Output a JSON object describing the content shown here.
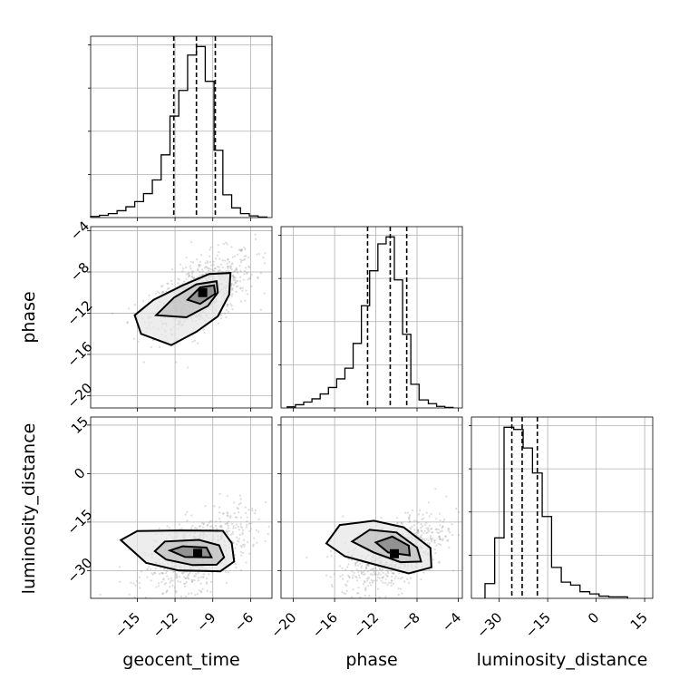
{
  "chart_data": {
    "type": "corner",
    "parameters": [
      "geocent_time",
      "phase",
      "luminosity_distance"
    ],
    "ticks": {
      "geocent_time": [
        -15,
        -12,
        -9,
        -6
      ],
      "phase": [
        -20,
        -16,
        -12,
        -8,
        -4
      ],
      "luminosity_distance": [
        -30,
        -15,
        0,
        15
      ]
    },
    "ranges": {
      "geocent_time": [
        -18.7,
        -4.3
      ],
      "phase": [
        -21.2,
        -3.6
      ],
      "luminosity_distance": [
        -38.6,
        17.5
      ]
    },
    "quantiles": {
      "geocent_time": [
        -12.1,
        -10.3,
        -8.8
      ],
      "phase": [
        -12.8,
        -10.6,
        -9.0
      ],
      "luminosity_distance": [
        -26.1,
        -22.9,
        -18.2
      ]
    },
    "histograms": {
      "geocent_time": {
        "edges": [
          -18.7,
          -18.0,
          -17.3,
          -16.6,
          -15.9,
          -15.2,
          -14.5,
          -13.8,
          -13.1,
          -12.4,
          -11.7,
          -11.0,
          -10.3,
          -9.6,
          -8.9,
          -8.2,
          -7.5,
          -6.8,
          -6.1,
          -5.4,
          -4.7
        ],
        "counts": [
          2,
          4,
          7,
          12,
          19,
          28,
          42,
          66,
          110,
          178,
          223,
          285,
          300,
          239,
          118,
          40,
          17,
          7,
          3,
          1
        ]
      },
      "phase": {
        "edges": [
          -20.6,
          -19.8,
          -19.0,
          -18.2,
          -17.4,
          -16.6,
          -15.8,
          -15.0,
          -14.2,
          -13.4,
          -12.6,
          -11.8,
          -11.0,
          -10.2,
          -9.4,
          -8.6,
          -7.8,
          -6.9,
          -6.1,
          -5.3,
          -4.5
        ],
        "counts": [
          2,
          6,
          11,
          17,
          26,
          38,
          54,
          74,
          120,
          190,
          255,
          305,
          318,
          238,
          137,
          44,
          15,
          8,
          3,
          1
        ]
      },
      "luminosity_distance": {
        "edges": [
          -34.4,
          -31.4,
          -28.5,
          -25.5,
          -22.6,
          -19.7,
          -16.7,
          -13.8,
          -10.8,
          -7.9,
          -5.0,
          -2.0,
          0.9,
          3.9,
          6.8,
          9.7
        ],
        "counts": [
          20,
          82,
          232,
          229,
          204,
          170,
          111,
          42,
          22,
          18,
          9,
          6,
          3,
          2,
          2
        ]
      }
    },
    "contours_2d": [
      {
        "x": "geocent_time",
        "y": "phase",
        "levels": [
          [
            [
              -15.2,
              -12.2
            ],
            [
              -13.7,
              -10.7
            ],
            [
              -11.4,
              -9.3
            ],
            [
              -9.3,
              -8.2
            ],
            [
              -7.6,
              -8.1
            ],
            [
              -7.7,
              -10.2
            ],
            [
              -8.6,
              -12.3
            ],
            [
              -10.3,
              -13.8
            ],
            [
              -12.3,
              -15.1
            ],
            [
              -14.7,
              -14.0
            ]
          ],
          [
            [
              -13.5,
              -12.2
            ],
            [
              -12.1,
              -10.5
            ],
            [
              -10.3,
              -9.2
            ],
            [
              -8.7,
              -8.9
            ],
            [
              -8.6,
              -10.0
            ],
            [
              -9.4,
              -11.3
            ],
            [
              -11.1,
              -12.4
            ]
          ],
          [
            [
              -11.0,
              -10.7
            ],
            [
              -10.0,
              -9.5
            ],
            [
              -8.9,
              -9.3
            ],
            [
              -8.8,
              -10.1
            ],
            [
              -10.0,
              -11.1
            ]
          ]
        ],
        "peak": [
          -9.8,
          -10.0
        ]
      },
      {
        "x": "geocent_time",
        "y": "luminosity_distance",
        "levels": [
          [
            [
              -16.3,
              -20.6
            ],
            [
              -15.0,
              -17.8
            ],
            [
              -11.5,
              -17.6
            ],
            [
              -8.2,
              -17.7
            ],
            [
              -7.5,
              -21.5
            ],
            [
              -7.3,
              -27.2
            ],
            [
              -8.4,
              -30.2
            ],
            [
              -11.7,
              -30.0
            ],
            [
              -14.3,
              -27.6
            ]
          ],
          [
            [
              -13.6,
              -24.0
            ],
            [
              -12.8,
              -21.0
            ],
            [
              -10.1,
              -20.5
            ],
            [
              -8.5,
              -22.2
            ],
            [
              -8.1,
              -25.9
            ],
            [
              -8.7,
              -28.2
            ],
            [
              -10.6,
              -28.3
            ],
            [
              -12.7,
              -26.6
            ]
          ],
          [
            [
              -12.4,
              -23.8
            ],
            [
              -11.4,
              -22.5
            ],
            [
              -9.5,
              -22.9
            ],
            [
              -9.1,
              -25.9
            ],
            [
              -11.2,
              -25.8
            ]
          ]
        ],
        "peak": [
          -10.2,
          -24.7
        ]
      },
      {
        "x": "phase",
        "y": "luminosity_distance",
        "levels": [
          [
            [
              -16.8,
              -21.6
            ],
            [
              -15.5,
              -15.9
            ],
            [
              -12.2,
              -14.6
            ],
            [
              -9.3,
              -16.6
            ],
            [
              -6.7,
              -23.0
            ],
            [
              -6.6,
              -29.0
            ],
            [
              -8.8,
              -30.9
            ],
            [
              -12.0,
              -28.2
            ],
            [
              -15.0,
              -25.6
            ]
          ],
          [
            [
              -14.3,
              -21.0
            ],
            [
              -12.6,
              -17.4
            ],
            [
              -10.0,
              -18.2
            ],
            [
              -8.0,
              -22.9
            ],
            [
              -7.6,
              -27.2
            ],
            [
              -9.6,
              -27.4
            ],
            [
              -12.2,
              -24.4
            ]
          ],
          [
            [
              -12.0,
              -21.3
            ],
            [
              -10.4,
              -19.5
            ],
            [
              -8.8,
              -22.3
            ],
            [
              -8.7,
              -25.3
            ],
            [
              -10.8,
              -24.4
            ]
          ]
        ],
        "peak": [
          -10.2,
          -24.8
        ]
      }
    ]
  }
}
